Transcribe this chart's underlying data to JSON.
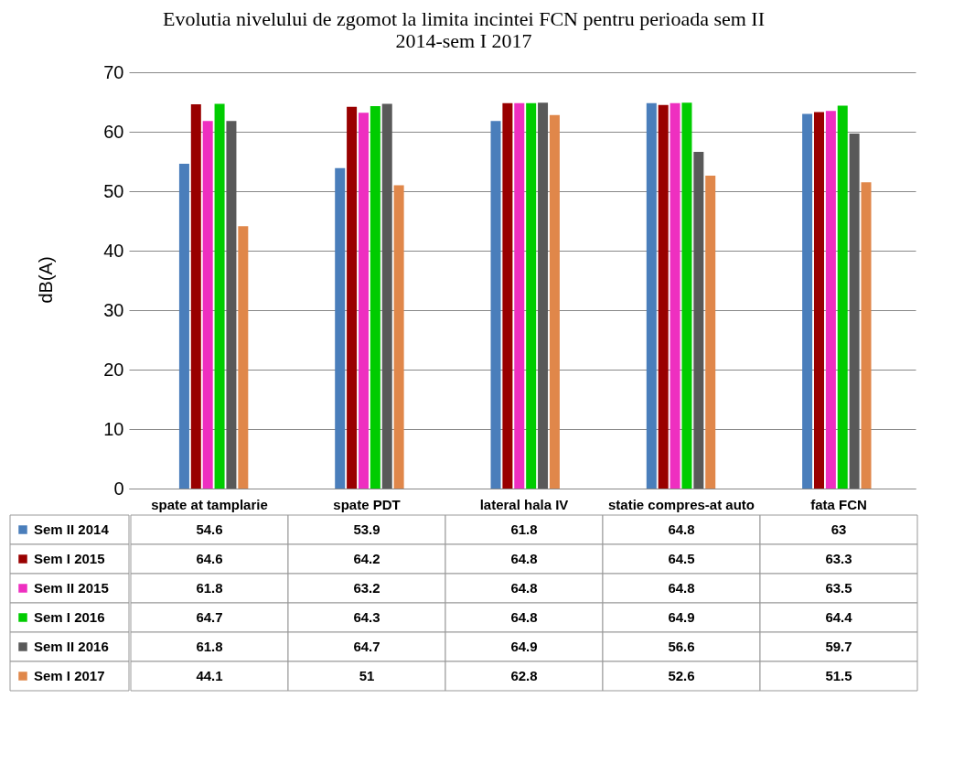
{
  "chart_data": {
    "type": "bar",
    "title": "Evolutia nivelului de zgomot la limita incintei FCN pentru perioada sem II 2014-sem I 2017",
    "ylabel": "dB(A)",
    "categories": [
      "spate at tamplarie",
      "spate PDT",
      "lateral hala IV",
      "statie compres-at auto",
      "fata FCN"
    ],
    "series": [
      {
        "name": "Sem II 2014",
        "color": "#4a7ebb",
        "values": [
          54.6,
          53.9,
          61.8,
          64.8,
          63
        ]
      },
      {
        "name": "Sem I 2015",
        "color": "#990000",
        "values": [
          64.6,
          64.2,
          64.8,
          64.5,
          63.3
        ]
      },
      {
        "name": "Sem II 2015",
        "color": "#ee2fc0",
        "values": [
          61.8,
          63.2,
          64.8,
          64.8,
          63.5
        ]
      },
      {
        "name": "Sem I 2016",
        "color": "#00cc00",
        "values": [
          64.7,
          64.3,
          64.8,
          64.9,
          64.4
        ]
      },
      {
        "name": "Sem II 2016",
        "color": "#595959",
        "values": [
          61.8,
          64.7,
          64.9,
          56.6,
          59.7
        ]
      },
      {
        "name": "Sem I 2017",
        "color": "#e0874a",
        "values": [
          44.1,
          51,
          62.8,
          52.6,
          51.5
        ]
      }
    ],
    "ylim": [
      0,
      70
    ],
    "yticks": [
      0,
      10,
      20,
      30,
      40,
      50,
      60,
      70
    ],
    "grid": "y",
    "legend": "bottom left",
    "data_labels": true
  }
}
